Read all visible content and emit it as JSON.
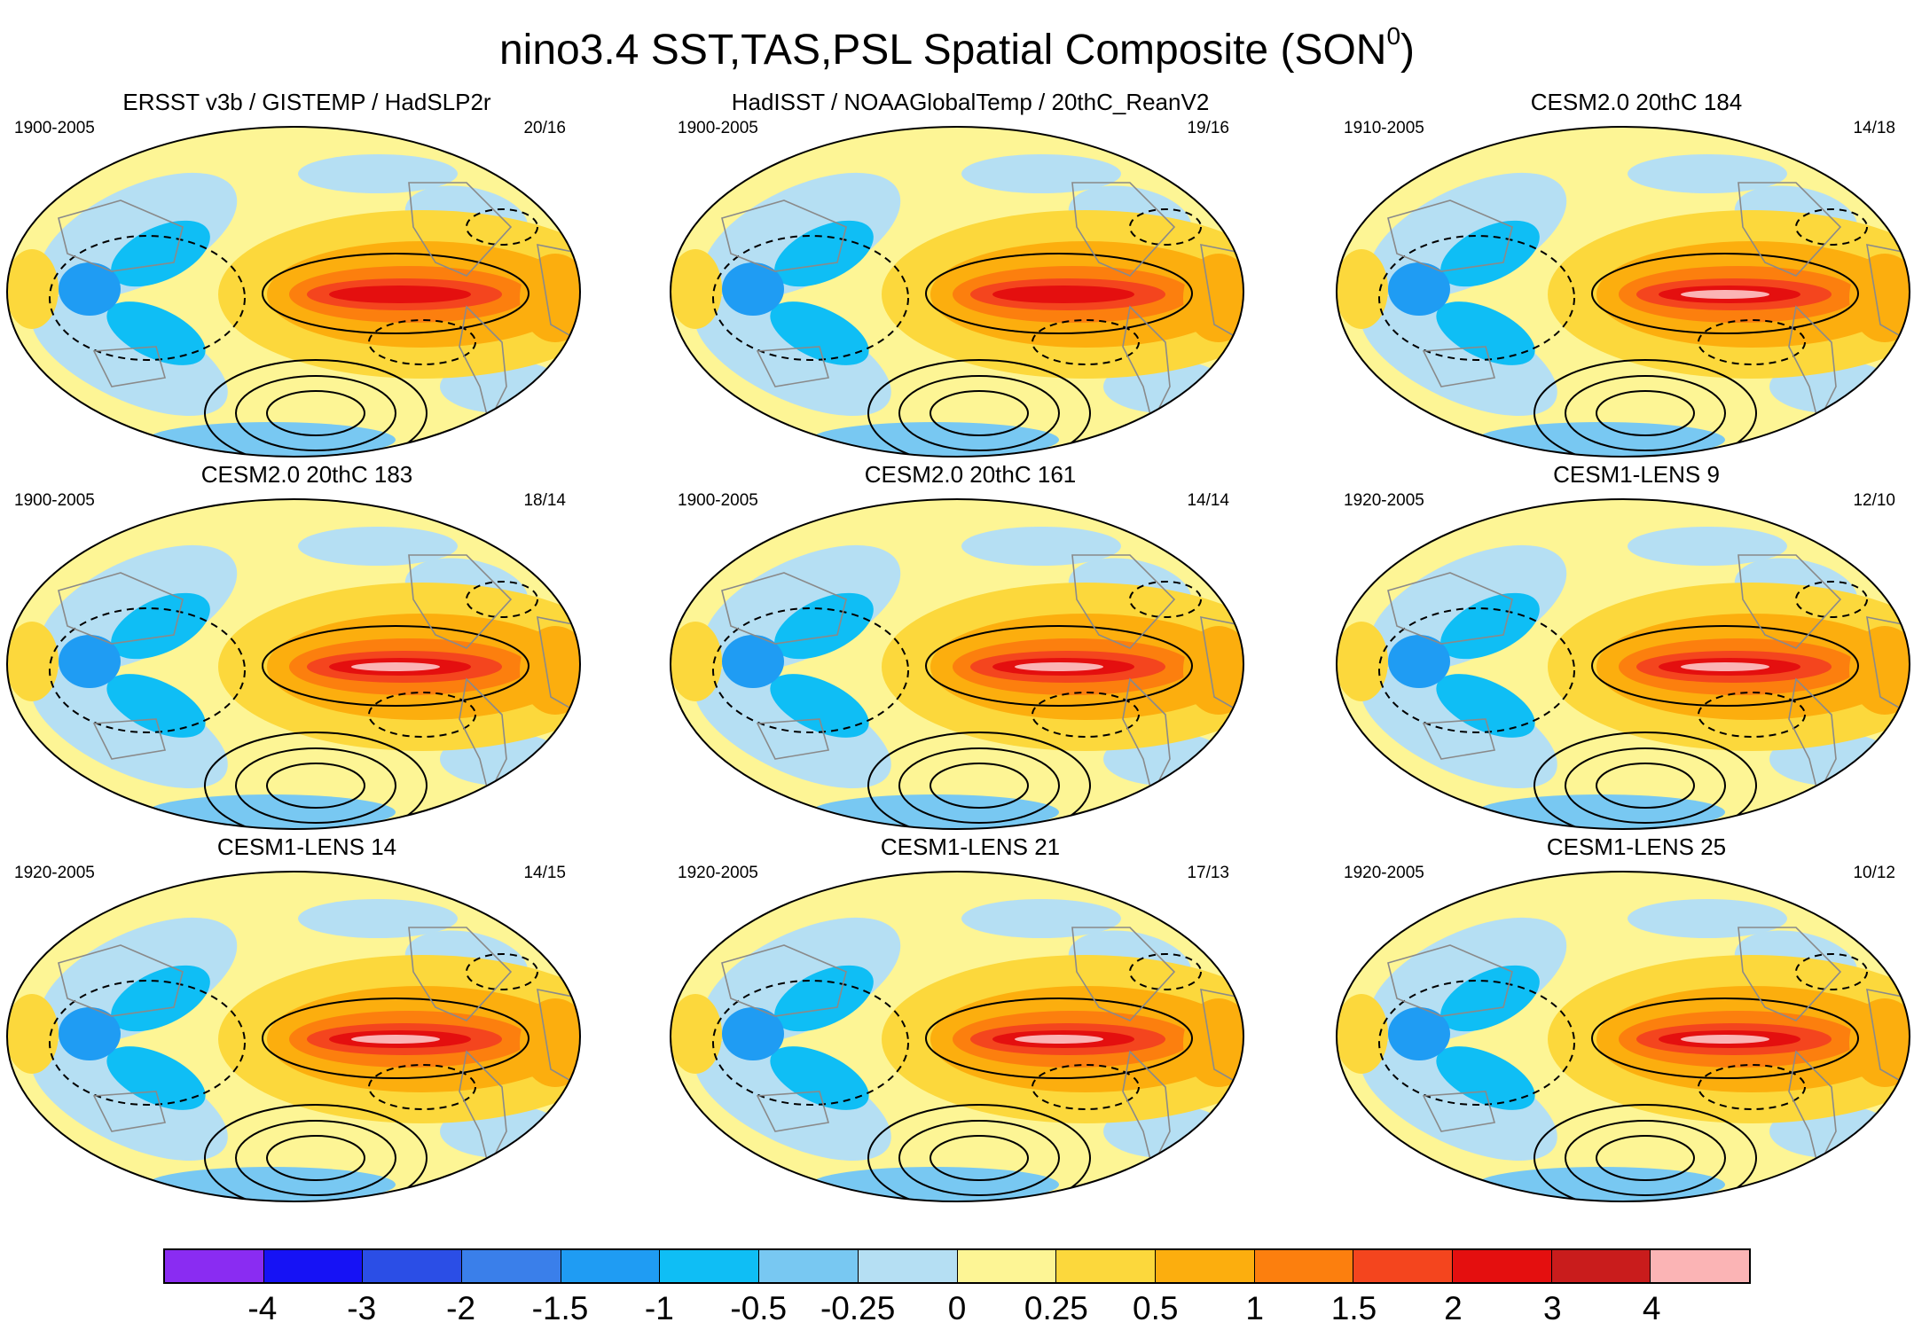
{
  "figure": {
    "title": "nino3.4 SST,TAS,PSL Spatial Composite (SON",
    "title_sup": "0",
    "title_close": ")"
  },
  "panels": [
    {
      "title": "ERSST v3b / GISTEMP / HadSLP2r",
      "years": "1900-2005",
      "count": "20/16"
    },
    {
      "title": "HadISST / NOAAGlobalTemp / 20thC_ReanV2",
      "years": "1900-2005",
      "count": "19/16"
    },
    {
      "title": "CESM2.0 20thC 184",
      "years": "1910-2005",
      "count": "14/18"
    },
    {
      "title": "CESM2.0 20thC 183",
      "years": "1900-2005",
      "count": "18/14"
    },
    {
      "title": "CESM2.0 20thC 161",
      "years": "1900-2005",
      "count": "14/14"
    },
    {
      "title": "CESM1-LENS 9",
      "years": "1920-2005",
      "count": "12/10"
    },
    {
      "title": "CESM1-LENS 14",
      "years": "1920-2005",
      "count": "14/15"
    },
    {
      "title": "CESM1-LENS 21",
      "years": "1920-2005",
      "count": "17/13"
    },
    {
      "title": "CESM1-LENS 25",
      "years": "1920-2005",
      "count": "10/12"
    }
  ],
  "colorbar": {
    "colors": [
      "#8a2cf2",
      "#1612f5",
      "#2b4ee6",
      "#3a7fea",
      "#1f9cf3",
      "#0fbef5",
      "#78c8f2",
      "#b5dff3",
      "#fdf595",
      "#fcd83c",
      "#fcae0e",
      "#fc7f0e",
      "#f4451e",
      "#e40f0f",
      "#c91c1c",
      "#fbb4b5"
    ],
    "labels": [
      "-4",
      "-3",
      "-2",
      "-1.5",
      "-1",
      "-0.5",
      "-0.25",
      "0",
      "0.25",
      "0.5",
      "1",
      "1.5",
      "2",
      "3",
      "4"
    ]
  }
}
